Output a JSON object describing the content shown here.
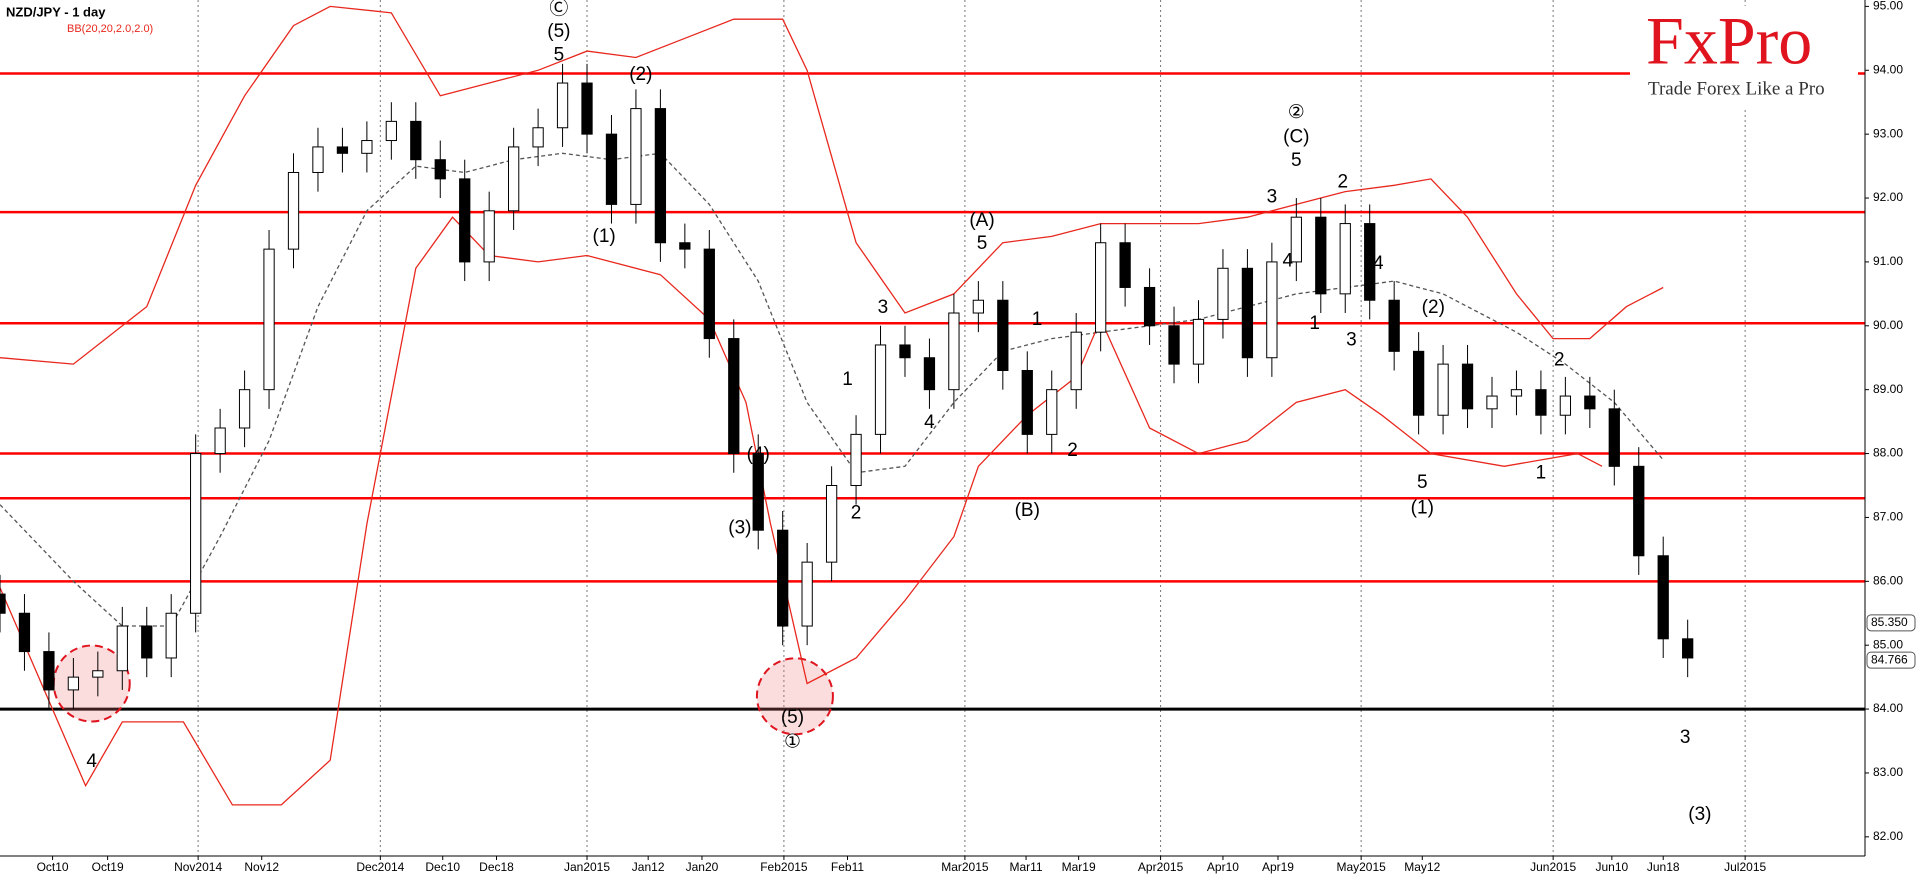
{
  "chart_data": {
    "type": "candlestick",
    "title": "NZD/JPY - 1 day",
    "indicator_label": "BB(20,20,2.0,2.0)",
    "open": [
      85.8,
      85.5,
      84.9,
      84.3,
      84.5,
      84.6,
      85.3,
      84.8,
      85.5,
      88.0,
      88.4,
      89.0,
      91.2,
      92.4,
      92.8,
      92.7,
      92.9,
      93.2,
      92.6,
      92.3,
      91.0,
      91.8,
      92.8,
      93.1,
      93.8,
      93.0,
      91.9,
      93.4,
      91.3,
      91.2,
      89.8,
      88.0,
      86.8,
      85.3,
      86.3,
      87.5,
      88.3,
      89.7,
      89.5,
      89.0,
      90.2,
      90.4,
      89.3,
      88.3,
      89.0,
      89.9,
      91.3,
      90.6,
      90.0,
      89.4,
      90.1,
      90.9,
      89.5,
      91.0,
      91.7,
      90.5,
      91.6,
      90.4,
      89.6,
      88.6,
      89.4,
      88.7,
      88.9,
      89.0,
      88.6,
      88.9,
      88.7,
      87.8,
      86.4,
      85.1
    ],
    "high": [
      86.1,
      85.8,
      85.2,
      84.8,
      84.9,
      85.6,
      85.6,
      85.8,
      88.3,
      88.7,
      89.3,
      91.5,
      92.7,
      93.1,
      93.1,
      93.2,
      93.5,
      93.5,
      92.9,
      92.6,
      92.1,
      93.1,
      93.4,
      94.1,
      94.1,
      93.3,
      93.7,
      93.7,
      91.6,
      91.5,
      90.1,
      88.3,
      87.1,
      86.6,
      87.8,
      88.6,
      90.0,
      90.0,
      89.8,
      90.5,
      90.7,
      90.7,
      89.6,
      89.3,
      90.2,
      91.6,
      91.6,
      90.9,
      90.3,
      90.4,
      91.2,
      91.2,
      91.3,
      92.0,
      92.0,
      91.9,
      91.9,
      90.7,
      89.9,
      89.7,
      89.7,
      89.2,
      89.3,
      89.3,
      89.2,
      89.2,
      89.0,
      88.1,
      86.7,
      85.4
    ],
    "low": [
      85.2,
      84.6,
      84.0,
      84.0,
      84.2,
      84.3,
      84.5,
      84.5,
      85.2,
      87.7,
      88.1,
      88.7,
      90.9,
      92.1,
      92.4,
      92.4,
      92.6,
      92.3,
      92.0,
      90.7,
      90.7,
      91.5,
      92.5,
      92.8,
      92.7,
      91.6,
      91.6,
      91.0,
      90.9,
      89.5,
      87.7,
      86.5,
      85.0,
      85.0,
      86.0,
      87.2,
      88.0,
      89.2,
      88.7,
      88.7,
      89.9,
      89.0,
      88.0,
      88.0,
      88.7,
      89.6,
      90.3,
      89.7,
      89.1,
      89.1,
      89.8,
      89.2,
      89.2,
      90.7,
      90.2,
      90.2,
      90.1,
      89.3,
      88.3,
      88.3,
      88.4,
      88.4,
      88.6,
      88.3,
      88.3,
      88.4,
      87.5,
      86.1,
      84.8,
      84.5
    ],
    "close": [
      85.5,
      84.9,
      84.3,
      84.5,
      84.6,
      85.3,
      84.8,
      85.5,
      88.0,
      88.4,
      89.0,
      91.2,
      92.4,
      92.8,
      92.7,
      92.9,
      93.2,
      92.6,
      92.3,
      91.0,
      91.8,
      92.8,
      93.1,
      93.8,
      93.0,
      91.9,
      93.4,
      91.3,
      91.2,
      89.8,
      88.0,
      86.8,
      85.3,
      86.3,
      87.5,
      88.3,
      89.7,
      89.5,
      89.0,
      90.2,
      90.4,
      89.3,
      88.3,
      89.0,
      89.9,
      91.3,
      90.6,
      90.0,
      89.4,
      90.1,
      90.9,
      89.5,
      91.0,
      91.7,
      90.5,
      91.6,
      90.4,
      89.6,
      88.6,
      89.4,
      88.7,
      88.9,
      89.0,
      88.6,
      88.9,
      88.7,
      87.8,
      86.4,
      85.1,
      84.8
    ],
    "up_color": "#ffffff",
    "down_color": "#000000",
    "bands": {
      "color": "#e8281e",
      "middle_color": "#555555",
      "upper": {
        "x": [
          0,
          3,
          6,
          8,
          10,
          12,
          13.5,
          16,
          18,
          20,
          22,
          24,
          26,
          28,
          30,
          32,
          33,
          35,
          37,
          39,
          41,
          43,
          45,
          47,
          49,
          51,
          53,
          55,
          57,
          58.5,
          60,
          62,
          63.5,
          65,
          66.5,
          68
        ],
        "values": [
          89.5,
          89.4,
          90.3,
          92.2,
          93.6,
          94.7,
          95.0,
          94.9,
          93.6,
          93.8,
          94.0,
          94.3,
          94.2,
          94.5,
          94.8,
          94.8,
          94.0,
          91.3,
          90.2,
          90.5,
          91.3,
          91.4,
          91.6,
          91.6,
          91.6,
          91.7,
          91.9,
          92.1,
          92.2,
          92.3,
          91.7,
          90.5,
          89.8,
          89.8,
          90.3,
          90.6
        ]
      },
      "middle": {
        "x": [
          0,
          3,
          5,
          7,
          9,
          11,
          13,
          15,
          17,
          19,
          21,
          23,
          25,
          27,
          29,
          31,
          33,
          35,
          37,
          39,
          41,
          43,
          45,
          47,
          49,
          51,
          53,
          55,
          57,
          59,
          62,
          64,
          66,
          68
        ],
        "values": [
          87.2,
          86.0,
          85.3,
          85.3,
          86.7,
          88.2,
          90.3,
          91.8,
          92.5,
          92.4,
          92.6,
          92.7,
          92.6,
          92.7,
          91.9,
          90.7,
          88.8,
          87.7,
          87.8,
          88.8,
          89.6,
          89.8,
          89.9,
          90.0,
          90.1,
          90.3,
          90.5,
          90.6,
          90.7,
          90.5,
          89.9,
          89.4,
          88.8,
          87.9
        ]
      },
      "lower": {
        "x": [
          0,
          3.5,
          5,
          7.5,
          9.5,
          11.5,
          13.5,
          15,
          17,
          18.5,
          20,
          22,
          24,
          27,
          29,
          30.5,
          31.5,
          33,
          35,
          37,
          39,
          40,
          42,
          44,
          45,
          47,
          49,
          51,
          53,
          55,
          56.5,
          58.5,
          61.5,
          64.5,
          65.5
        ],
        "values": [
          85.9,
          82.8,
          83.8,
          83.8,
          82.5,
          82.5,
          83.2,
          86.9,
          90.9,
          91.7,
          91.1,
          91.0,
          91.1,
          90.8,
          90.1,
          88.8,
          86.9,
          84.4,
          84.8,
          85.7,
          86.7,
          87.8,
          88.6,
          89.2,
          90.1,
          88.4,
          88.0,
          88.2,
          88.8,
          89.0,
          88.6,
          88.0,
          87.8,
          88.0,
          87.8
        ]
      }
    },
    "levels": [
      93.95,
      91.78,
      90.04,
      88.0,
      87.3,
      86.0
    ],
    "level_color": "#ff0000",
    "support": 84.0,
    "support_color": "#000000",
    "xlim": [
      0,
      76.25
    ],
    "ylim": [
      81.7,
      95.1
    ],
    "xticks": [
      {
        "value": 2.15,
        "label": "Oct10"
      },
      {
        "value": 4.4,
        "label": "Oct19"
      },
      {
        "value": 8.1,
        "label": "Nov2014"
      },
      {
        "value": 10.7,
        "label": "Nov12"
      },
      {
        "value": 15.55,
        "label": "Dec2014"
      },
      {
        "value": 18.1,
        "label": "Dec10"
      },
      {
        "value": 20.3,
        "label": "Dec18"
      },
      {
        "value": 24,
        "label": "Jan2015"
      },
      {
        "value": 26.5,
        "label": "Jan12"
      },
      {
        "value": 28.7,
        "label": "Jan20"
      },
      {
        "value": 32.05,
        "label": "Feb2015"
      },
      {
        "value": 34.65,
        "label": "Feb11"
      },
      {
        "value": 39.45,
        "label": "Mar2015"
      },
      {
        "value": 41.95,
        "label": "Mar11"
      },
      {
        "value": 44.1,
        "label": "Mar19"
      },
      {
        "value": 47.45,
        "label": "Apr2015"
      },
      {
        "value": 50,
        "label": "Apr10"
      },
      {
        "value": 52.25,
        "label": "Apr19"
      },
      {
        "value": 55.65,
        "label": "May2015"
      },
      {
        "value": 58.15,
        "label": "May12"
      },
      {
        "value": 63.5,
        "label": "Jun2015"
      },
      {
        "value": 65.9,
        "label": "Jun10"
      },
      {
        "value": 68,
        "label": "Jun18"
      },
      {
        "value": 71.35,
        "label": "Jul2015"
      }
    ],
    "xgrid": [
      2,
      4,
      7,
      10,
      12,
      15,
      18,
      20,
      23
    ],
    "yticks": [
      {
        "value": 95,
        "label": "95.00"
      },
      {
        "value": 94,
        "label": "94.00"
      },
      {
        "value": 93,
        "label": "93.00"
      },
      {
        "value": 92,
        "label": "92.00"
      },
      {
        "value": 91,
        "label": "91.00"
      },
      {
        "value": 90,
        "label": "90.00"
      },
      {
        "value": 89,
        "label": "89.00"
      },
      {
        "value": 88,
        "label": "88.00"
      },
      {
        "value": 87,
        "label": "87.00"
      },
      {
        "value": 86,
        "label": "86.00"
      },
      {
        "value": 85,
        "label": "85.00"
      },
      {
        "value": 84,
        "label": "84.00"
      },
      {
        "value": 83,
        "label": "83.00"
      },
      {
        "value": 82,
        "label": "82.00"
      }
    ],
    "price_markers": [
      {
        "value": 85.35,
        "label": "85.350"
      },
      {
        "value": 84.766,
        "label": "84.766"
      }
    ],
    "highlights": [
      {
        "x": 3.75,
        "y": 84.4
      },
      {
        "x": 32.5,
        "y": 84.2
      }
    ],
    "annotations": [
      {
        "text": "Ⓒ",
        "x": 22.85,
        "y": 94.96
      },
      {
        "text": "(5)",
        "x": 22.85,
        "y": 94.6
      },
      {
        "text": "5",
        "x": 22.85,
        "y": 94.23
      },
      {
        "text": "(2)",
        "x": 26.2,
        "y": 93.93
      },
      {
        "text": "(1)",
        "x": 24.7,
        "y": 91.39
      },
      {
        "text": "4",
        "x": 3.75,
        "y": 83.17
      },
      {
        "text": "(4)",
        "x": 31,
        "y": 87.98
      },
      {
        "text": "(3)",
        "x": 30.25,
        "y": 86.83
      },
      {
        "text": "(5)",
        "x": 32.4,
        "y": 83.86
      },
      {
        "text": "①",
        "x": 32.4,
        "y": 83.48
      },
      {
        "text": "3",
        "x": 36.1,
        "y": 90.28
      },
      {
        "text": "1",
        "x": 34.65,
        "y": 89.15
      },
      {
        "text": "4",
        "x": 38,
        "y": 88.48
      },
      {
        "text": "2",
        "x": 35,
        "y": 87.06
      },
      {
        "text": "(A)",
        "x": 40.15,
        "y": 91.64
      },
      {
        "text": "5",
        "x": 40.15,
        "y": 91.28
      },
      {
        "text": "1",
        "x": 42.4,
        "y": 90.09
      },
      {
        "text": "2",
        "x": 43.85,
        "y": 88.04
      },
      {
        "text": "(B)",
        "x": 42,
        "y": 87.1
      },
      {
        "text": "②",
        "x": 53,
        "y": 93.33
      },
      {
        "text": "(C)",
        "x": 53,
        "y": 92.95
      },
      {
        "text": "5",
        "x": 53,
        "y": 92.58
      },
      {
        "text": "3",
        "x": 52,
        "y": 92.01
      },
      {
        "text": "4",
        "x": 52.65,
        "y": 91.01
      },
      {
        "text": "2",
        "x": 54.9,
        "y": 92.24
      },
      {
        "text": "4",
        "x": 56.35,
        "y": 90.97
      },
      {
        "text": "1",
        "x": 53.75,
        "y": 90.03
      },
      {
        "text": "3",
        "x": 55.25,
        "y": 89.77
      },
      {
        "text": "(2)",
        "x": 58.6,
        "y": 90.28
      },
      {
        "text": "5",
        "x": 58.15,
        "y": 87.54
      },
      {
        "text": "(1)",
        "x": 58.15,
        "y": 87.14
      },
      {
        "text": "2",
        "x": 63.75,
        "y": 89.46
      },
      {
        "text": "1",
        "x": 63,
        "y": 87.69
      },
      {
        "text": "3",
        "x": 68.9,
        "y": 83.55
      },
      {
        "text": "(3)",
        "x": 69.5,
        "y": 82.34
      }
    ]
  },
  "brand": {
    "logo": "FxPro",
    "tagline": "Trade Forex Like a Pro"
  }
}
